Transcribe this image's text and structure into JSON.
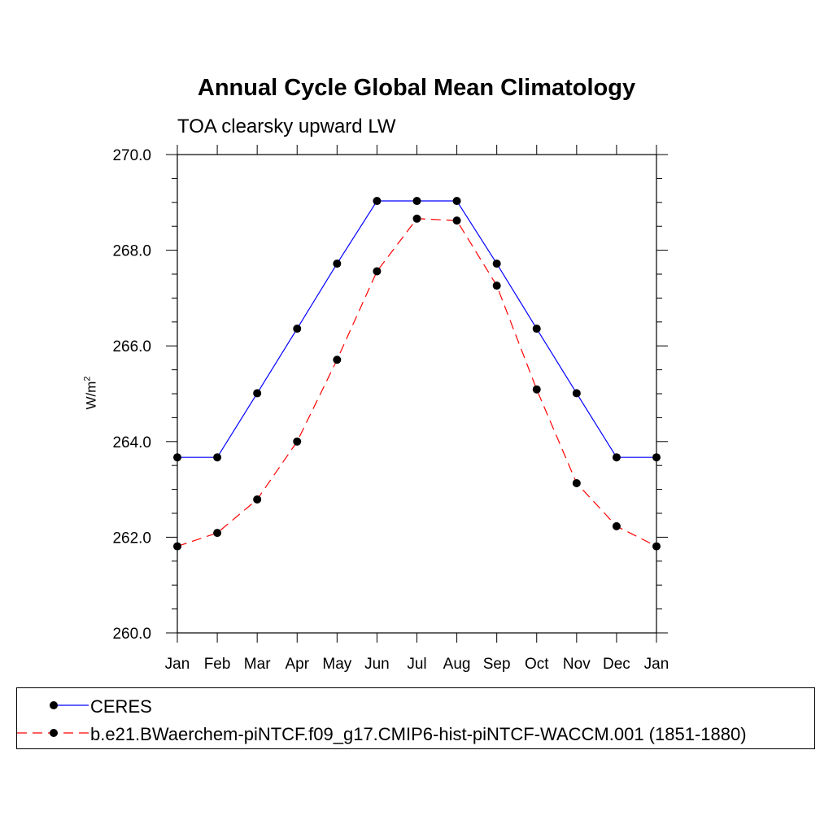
{
  "chart_data": {
    "type": "line",
    "title": "Annual Cycle Global Mean Climatology",
    "subtitle": "TOA clearsky upward LW",
    "ylabel": "W/m",
    "ylabel_sup": "2",
    "xlabel": "",
    "categories": [
      "Jan",
      "Feb",
      "Mar",
      "Apr",
      "May",
      "Jun",
      "Jul",
      "Aug",
      "Sep",
      "Oct",
      "Nov",
      "Dec",
      "Jan"
    ],
    "ylim": [
      260.0,
      270.0
    ],
    "yticks": [
      "260.0",
      "262.0",
      "264.0",
      "266.0",
      "268.0",
      "270.0"
    ],
    "series": [
      {
        "name": "CERES",
        "color": "#0000ff",
        "line_style": "solid",
        "marker": "filled-circle",
        "values": [
          263.67,
          263.67,
          265.01,
          266.36,
          267.72,
          269.03,
          269.03,
          269.03,
          267.72,
          266.36,
          265.01,
          263.67,
          263.67
        ]
      },
      {
        "name": "b.e21.BWaerchem-piNTCF.f09_g17.CMIP6-hist-piNTCF-WACCM.001 (1851-1880)",
        "color": "#ff0000",
        "line_style": "dashed",
        "marker": "filled-circle",
        "values": [
          261.81,
          262.09,
          262.79,
          264.0,
          265.71,
          267.56,
          268.66,
          268.62,
          267.26,
          265.09,
          263.13,
          262.23,
          261.81
        ]
      }
    ],
    "legend_position": "bottom",
    "grid": false
  }
}
